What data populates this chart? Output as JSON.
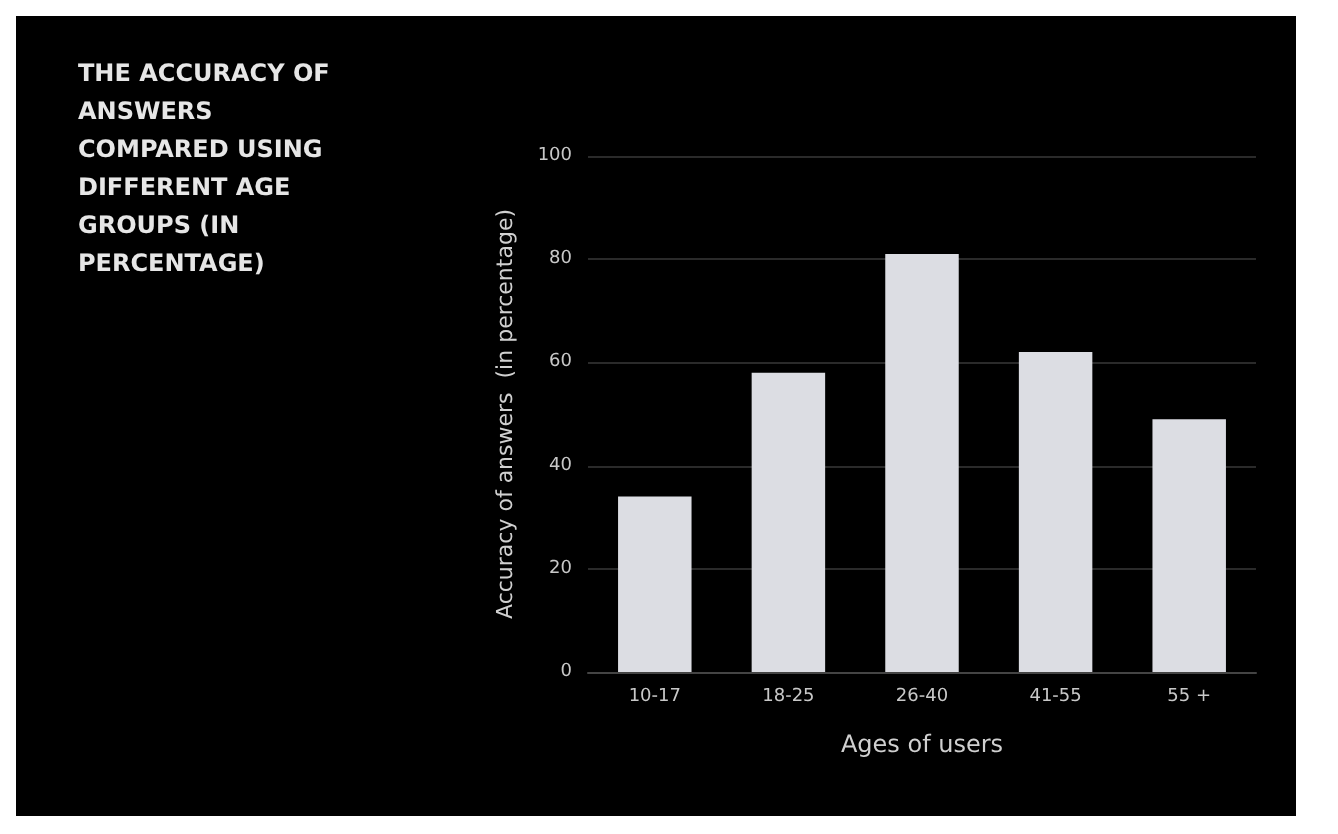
{
  "chart_data": {
    "type": "bar",
    "title": "THE ACCURACY OF ANSWERS COMPARED USING DIFFERENT AGE GROUPS (IN PERCENTAGE)",
    "xlabel": "Ages of users",
    "ylabel": "Accuracy of answers  (in percentage)",
    "categories": [
      "10-17",
      "18-25",
      "26-40",
      "41-55",
      "55 +"
    ],
    "values": [
      34,
      58,
      81,
      62,
      49
    ],
    "color": "#dcdde3",
    "ylim": [
      0,
      100
    ],
    "yticks": [
      0,
      20,
      40,
      60,
      80,
      100
    ],
    "grid": "y"
  }
}
